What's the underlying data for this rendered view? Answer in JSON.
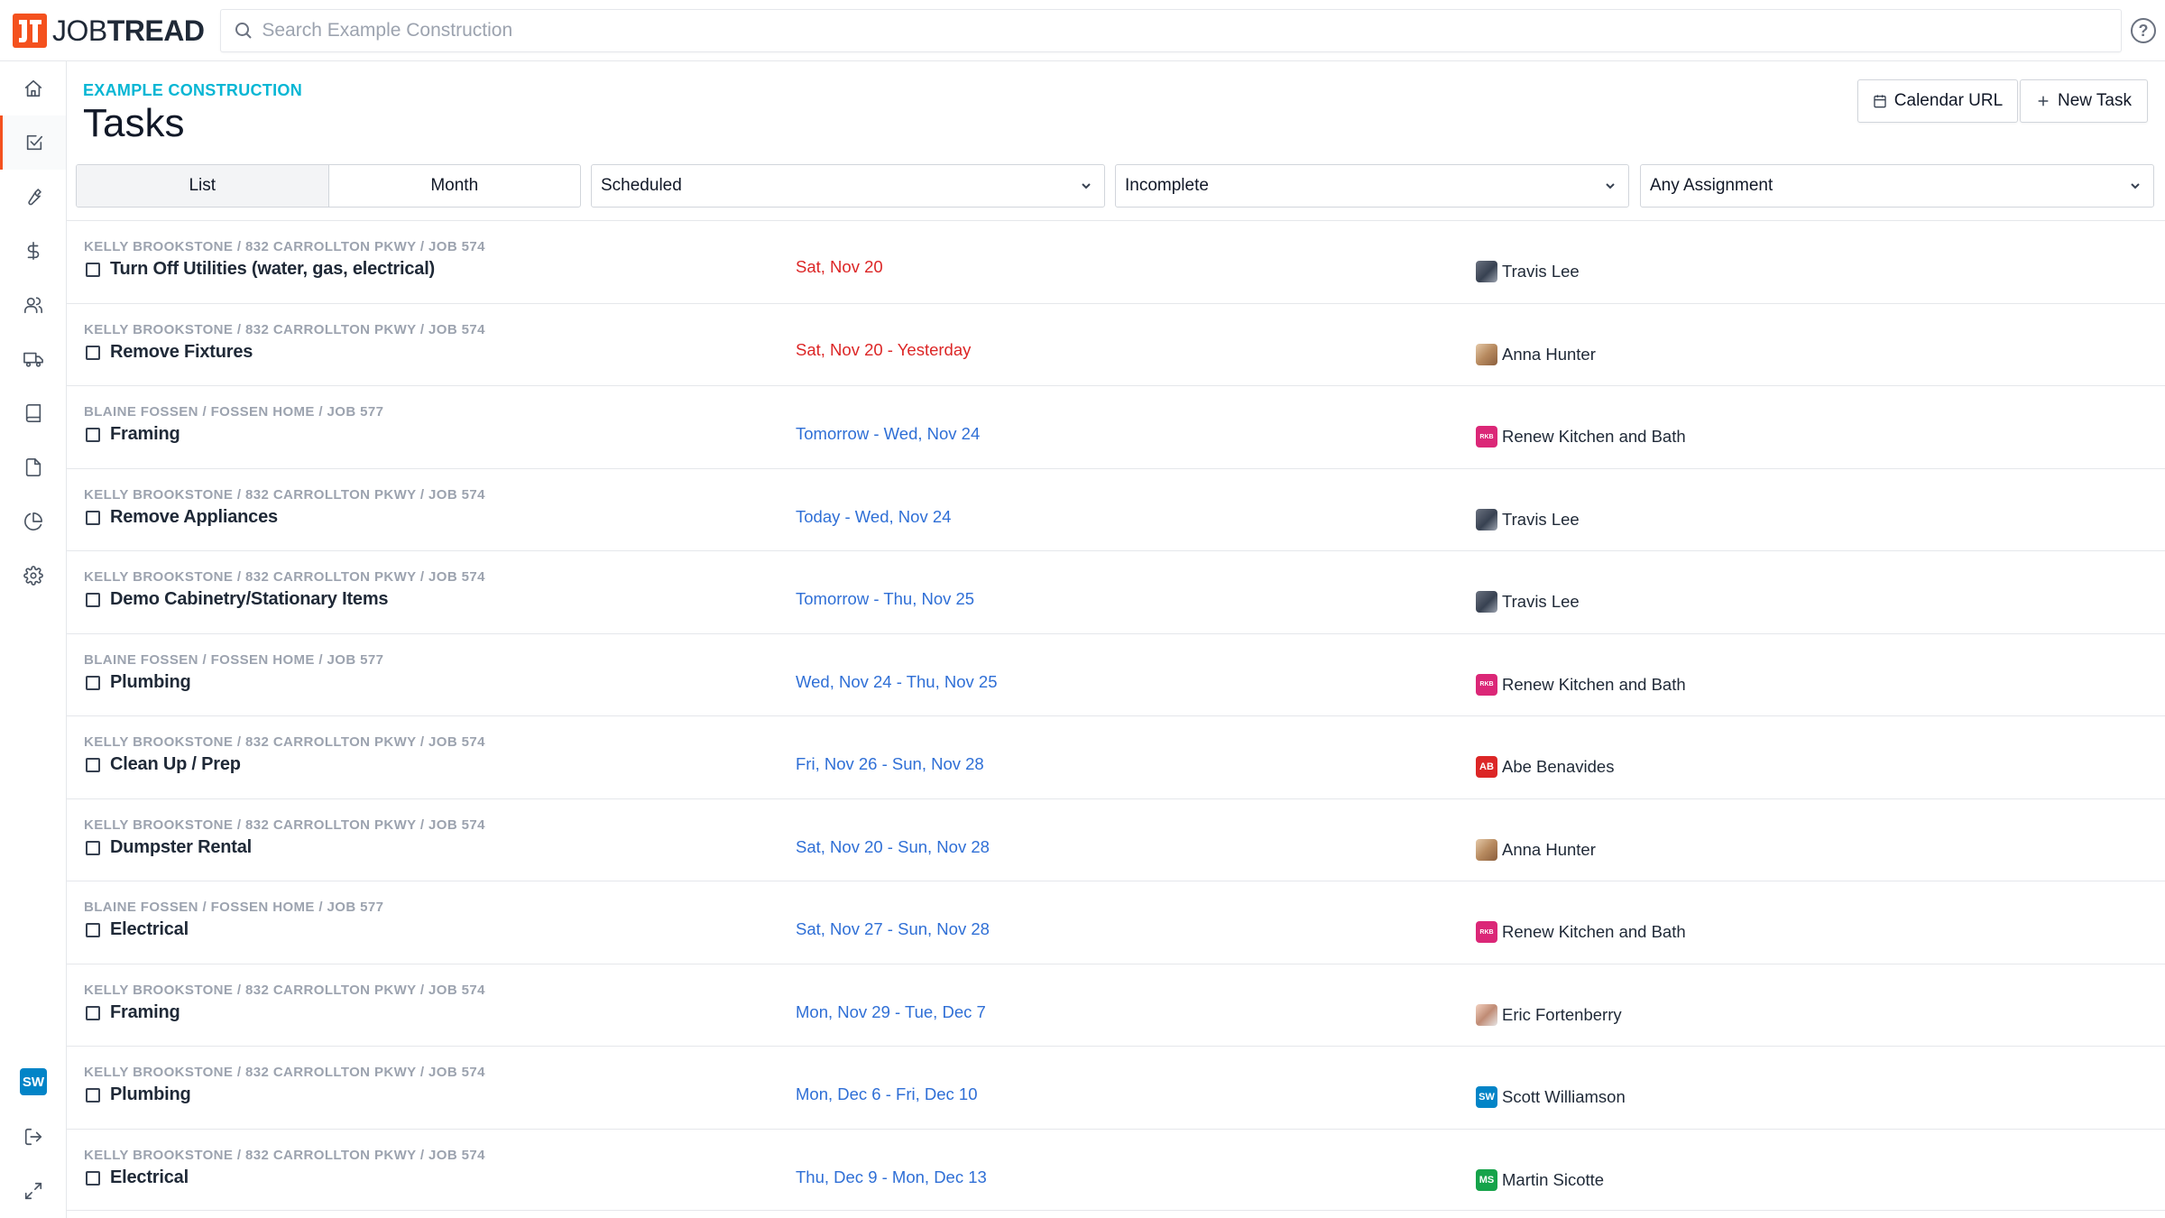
{
  "app": {
    "logo_job": "JOB",
    "logo_tread": "TREAD",
    "search_placeholder": "Search Example Construction",
    "help": "?"
  },
  "sidebar": {
    "items": [
      {
        "name": "home-icon"
      },
      {
        "name": "tasks-icon",
        "active": true
      },
      {
        "name": "wrench-icon"
      },
      {
        "name": "dollar-icon"
      },
      {
        "name": "users-icon"
      },
      {
        "name": "truck-icon"
      },
      {
        "name": "book-icon"
      },
      {
        "name": "document-icon"
      },
      {
        "name": "pie-chart-icon"
      },
      {
        "name": "gear-icon"
      }
    ],
    "user_initials": "SW"
  },
  "header": {
    "org": "EXAMPLE CONSTRUCTION",
    "title": "Tasks",
    "calendar_url_label": "Calendar URL",
    "new_task_label": "New Task"
  },
  "filters": {
    "view_list": "List",
    "view_month": "Month",
    "schedule": "Scheduled",
    "status": "Incomplete",
    "assignment": "Any Assignment"
  },
  "colors": {
    "accent": "#f4511e",
    "org": "#06b6d4",
    "overdue": "#dc2626",
    "upcoming": "#2f6fd6"
  },
  "tasks": [
    {
      "crumb": "KELLY BROOKSTONE / 832 CARROLLTON PKWY / JOB 574",
      "name": "Turn Off Utilities (water, gas, electrical)",
      "date": "Sat, Nov 20",
      "date_status": "red",
      "assignee": "Travis Lee",
      "avatar": "photo-tl",
      "avatar_text": ""
    },
    {
      "crumb": "KELLY BROOKSTONE / 832 CARROLLTON PKWY / JOB 574",
      "name": "Remove Fixtures",
      "date": "Sat, Nov 20 - Yesterday",
      "date_status": "red",
      "assignee": "Anna Hunter",
      "avatar": "photo-ah",
      "avatar_text": ""
    },
    {
      "crumb": "BLAINE FOSSEN / FOSSEN HOME / JOB 577",
      "name": "Framing",
      "date": "Tomorrow - Wed, Nov 24",
      "date_status": "blue",
      "assignee": "Renew Kitchen and Bath",
      "avatar": "rkb",
      "avatar_text": "RKB"
    },
    {
      "crumb": "KELLY BROOKSTONE / 832 CARROLLTON PKWY / JOB 574",
      "name": "Remove Appliances",
      "date": "Today - Wed, Nov 24",
      "date_status": "blue",
      "assignee": "Travis Lee",
      "avatar": "photo-tl",
      "avatar_text": ""
    },
    {
      "crumb": "KELLY BROOKSTONE / 832 CARROLLTON PKWY / JOB 574",
      "name": "Demo Cabinetry/Stationary Items",
      "date": "Tomorrow - Thu, Nov 25",
      "date_status": "blue",
      "assignee": "Travis Lee",
      "avatar": "photo-tl",
      "avatar_text": ""
    },
    {
      "crumb": "BLAINE FOSSEN / FOSSEN HOME / JOB 577",
      "name": "Plumbing",
      "date": "Wed, Nov 24 - Thu, Nov 25",
      "date_status": "blue",
      "assignee": "Renew Kitchen and Bath",
      "avatar": "rkb",
      "avatar_text": "RKB"
    },
    {
      "crumb": "KELLY BROOKSTONE / 832 CARROLLTON PKWY / JOB 574",
      "name": "Clean Up / Prep",
      "date": "Fri, Nov 26 - Sun, Nov 28",
      "date_status": "blue",
      "assignee": "Abe Benavides",
      "avatar": "ab",
      "avatar_text": "AB"
    },
    {
      "crumb": "KELLY BROOKSTONE / 832 CARROLLTON PKWY / JOB 574",
      "name": "Dumpster Rental",
      "date": "Sat, Nov 20 - Sun, Nov 28",
      "date_status": "blue",
      "assignee": "Anna Hunter",
      "avatar": "photo-ah",
      "avatar_text": ""
    },
    {
      "crumb": "BLAINE FOSSEN / FOSSEN HOME / JOB 577",
      "name": "Electrical",
      "date": "Sat, Nov 27 - Sun, Nov 28",
      "date_status": "blue",
      "assignee": "Renew Kitchen and Bath",
      "avatar": "rkb",
      "avatar_text": "RKB"
    },
    {
      "crumb": "KELLY BROOKSTONE / 832 CARROLLTON PKWY / JOB 574",
      "name": "Framing",
      "date": "Mon, Nov 29 - Tue, Dec 7",
      "date_status": "blue",
      "assignee": "Eric Fortenberry",
      "avatar": "photo-ef",
      "avatar_text": ""
    },
    {
      "crumb": "KELLY BROOKSTONE / 832 CARROLLTON PKWY / JOB 574",
      "name": "Plumbing",
      "date": "Mon, Dec 6 - Fri, Dec 10",
      "date_status": "blue",
      "assignee": "Scott Williamson",
      "avatar": "sw",
      "avatar_text": "SW"
    },
    {
      "crumb": "KELLY BROOKSTONE / 832 CARROLLTON PKWY / JOB 574",
      "name": "Electrical",
      "date": "Thu, Dec 9 - Mon, Dec 13",
      "date_status": "blue",
      "assignee": "Martin Sicotte",
      "avatar": "ms",
      "avatar_text": "MS"
    }
  ]
}
